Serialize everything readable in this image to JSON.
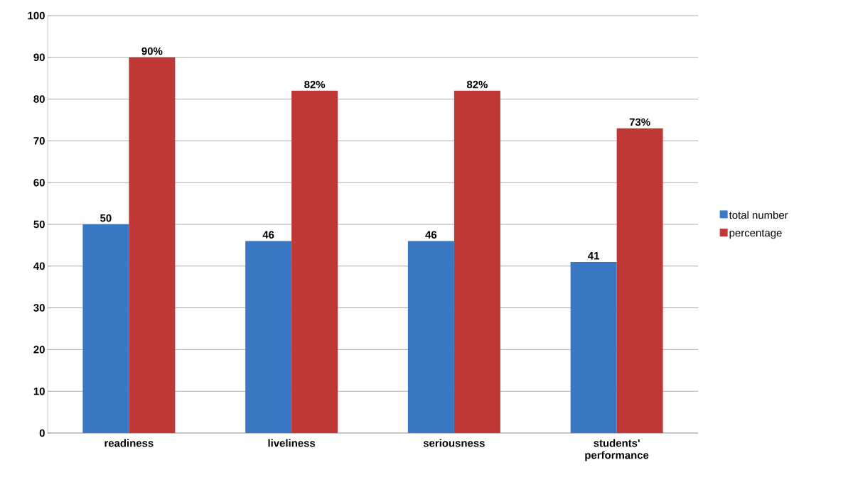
{
  "chart_data": {
    "type": "bar",
    "categories": [
      "readiness",
      "liveliness",
      "seriousness",
      "students' performance"
    ],
    "series": [
      {
        "name": "total number",
        "color": "#3a78c3",
        "values": [
          50,
          46,
          46,
          41
        ],
        "value_labels": [
          "50",
          "46",
          "46",
          "41"
        ]
      },
      {
        "name": "percentage",
        "color": "#bf3836",
        "values": [
          90,
          82,
          82,
          73
        ],
        "value_labels": [
          "90%",
          "82%",
          "82%",
          "73%"
        ]
      }
    ],
    "ylim": [
      0,
      100
    ],
    "yticks": [
      0,
      10,
      20,
      30,
      40,
      50,
      60,
      70,
      80,
      90,
      100
    ],
    "grid": "y",
    "legend": "right"
  }
}
